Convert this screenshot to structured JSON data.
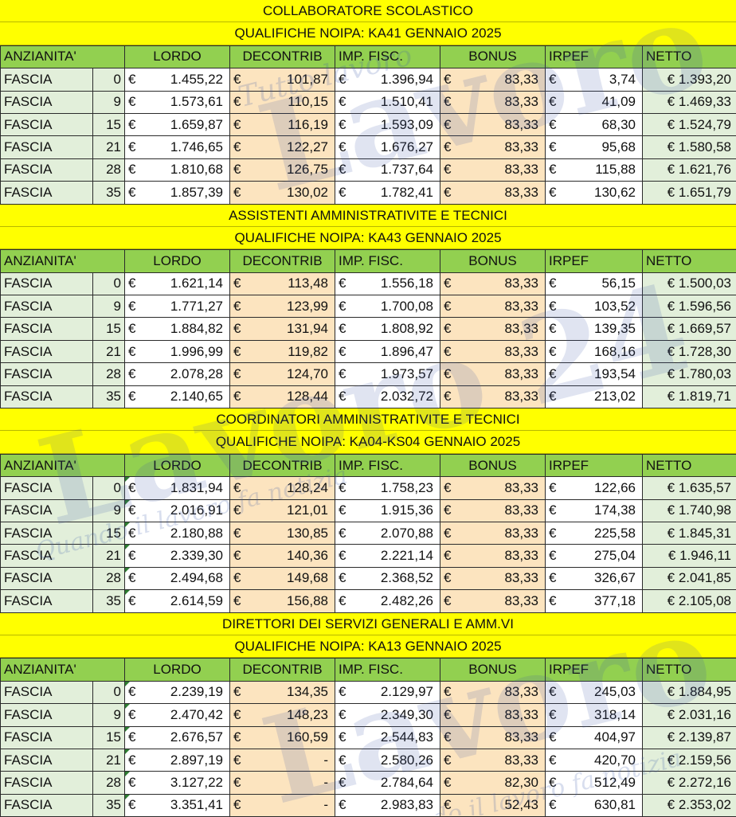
{
  "headers": [
    "ANZIANITA'",
    "LORDO",
    "DECONTRIB",
    "IMP. FISC.",
    "BONUS",
    "IRPEF",
    "NETTO"
  ],
  "currency": "€",
  "row_label": "FASCIA",
  "watermark": {
    "text": "Lavoro 24",
    "tagline": "Tutto lavoro",
    "tagline2": "Quando il lavoro fa notizia"
  },
  "sections": [
    {
      "title": "COLLABORATORE SCOLASTICO",
      "subtitle": "QUALIFICHE NOIPA: KA41 GENNAIO 2025",
      "rows": [
        {
          "years": "0",
          "lordo": "1.455,22",
          "decontrib": "101,87",
          "imp": "1.396,94",
          "bonus": "83,33",
          "irpef": "3,74",
          "netto": "€ 1.393,20"
        },
        {
          "years": "9",
          "lordo": "1.573,61",
          "decontrib": "110,15",
          "imp": "1.510,41",
          "bonus": "83,33",
          "irpef": "41,09",
          "netto": "€ 1.469,33"
        },
        {
          "years": "15",
          "lordo": "1.659,87",
          "decontrib": "116,19",
          "imp": "1.593,09",
          "bonus": "83,33",
          "irpef": "68,30",
          "netto": "€ 1.524,79"
        },
        {
          "years": "21",
          "lordo": "1.746,65",
          "decontrib": "122,27",
          "imp": "1.676,27",
          "bonus": "83,33",
          "irpef": "95,68",
          "netto": "€ 1.580,58"
        },
        {
          "years": "28",
          "lordo": "1.810,68",
          "decontrib": "126,75",
          "imp": "1.737,64",
          "bonus": "83,33",
          "irpef": "115,88",
          "netto": "€ 1.621,76"
        },
        {
          "years": "35",
          "lordo": "1.857,39",
          "decontrib": "130,02",
          "imp": "1.782,41",
          "bonus": "83,33",
          "irpef": "130,62",
          "netto": "€ 1.651,79"
        }
      ]
    },
    {
      "title": "ASSISTENTI AMMINISTRATIVITE E TECNICI",
      "subtitle": "QUALIFICHE NOIPA: KA43 GENNAIO 2025",
      "rows": [
        {
          "years": "0",
          "lordo": "1.621,14",
          "decontrib": "113,48",
          "imp": "1.556,18",
          "bonus": "83,33",
          "irpef": "56,15",
          "netto": "€ 1.500,03"
        },
        {
          "years": "9",
          "lordo": "1.771,27",
          "decontrib": "123,99",
          "imp": "1.700,08",
          "bonus": "83,33",
          "irpef": "103,52",
          "netto": "€ 1.596,56"
        },
        {
          "years": "15",
          "lordo": "1.884,82",
          "decontrib": "131,94",
          "imp": "1.808,92",
          "bonus": "83,33",
          "irpef": "139,35",
          "netto": "€ 1.669,57"
        },
        {
          "years": "21",
          "lordo": "1.996,99",
          "decontrib": "119,82",
          "imp": "1.896,47",
          "bonus": "83,33",
          "irpef": "168,16",
          "netto": "€ 1.728,30"
        },
        {
          "years": "28",
          "lordo": "2.078,28",
          "decontrib": "124,70",
          "imp": "1.973,57",
          "bonus": "83,33",
          "irpef": "193,54",
          "netto": "€ 1.780,03"
        },
        {
          "years": "35",
          "lordo": "2.140,65",
          "decontrib": "128,44",
          "imp": "2.032,72",
          "bonus": "83,33",
          "irpef": "213,02",
          "netto": "€ 1.819,71"
        }
      ]
    },
    {
      "title": "COORDINATORI AMMINISTRATIVITE E TECNICI",
      "subtitle": "QUALIFICHE NOIPA: KA04-KS04 GENNAIO 2025",
      "rows": [
        {
          "years": "0",
          "lordo": "1.831,94",
          "decontrib": "128,24",
          "imp": "1.758,23",
          "bonus": "83,33",
          "irpef": "122,66",
          "netto": "€ 1.635,57"
        },
        {
          "years": "9",
          "lordo": "2.016,91",
          "decontrib": "121,01",
          "imp": "1.915,36",
          "bonus": "83,33",
          "irpef": "174,38",
          "netto": "€ 1.740,98"
        },
        {
          "years": "15",
          "lordo": "2.180,88",
          "decontrib": "130,85",
          "imp": "2.070,88",
          "bonus": "83,33",
          "irpef": "225,58",
          "netto": "€ 1.845,31"
        },
        {
          "years": "21",
          "lordo": "2.339,30",
          "decontrib": "140,36",
          "imp": "2.221,14",
          "bonus": "83,33",
          "irpef": "275,04",
          "netto": "€ 1.946,11"
        },
        {
          "years": "28",
          "lordo": "2.494,68",
          "decontrib": "149,68",
          "imp": "2.368,52",
          "bonus": "83,33",
          "irpef": "326,67",
          "netto": "€ 2.041,85"
        },
        {
          "years": "35",
          "lordo": "2.614,59",
          "decontrib": "156,88",
          "imp": "2.482,26",
          "bonus": "83,33",
          "irpef": "377,18",
          "netto": "€ 2.105,08"
        }
      ]
    },
    {
      "title": "DIRETTORI DEI SERVIZI GENERALI E AMM.VI",
      "subtitle": "QUALIFICHE NOIPA: KA13 GENNAIO 2025",
      "rows": [
        {
          "years": "0",
          "lordo": "2.239,19",
          "decontrib": "134,35",
          "imp": "2.129,97",
          "bonus": "83,33",
          "irpef": "245,03",
          "netto": "€ 1.884,95"
        },
        {
          "years": "9",
          "lordo": "2.470,42",
          "decontrib": "148,23",
          "imp": "2.349,30",
          "bonus": "83,33",
          "irpef": "318,14",
          "netto": "€ 2.031,16"
        },
        {
          "years": "15",
          "lordo": "2.676,57",
          "decontrib": "160,59",
          "imp": "2.544,83",
          "bonus": "83,33",
          "irpef": "404,97",
          "netto": "€ 2.139,87"
        },
        {
          "years": "21",
          "lordo": "2.897,19",
          "decontrib": "-",
          "imp": "2.580,26",
          "bonus": "83,33",
          "irpef": "420,70",
          "netto": "€ 2.159,56"
        },
        {
          "years": "28",
          "lordo": "3.127,22",
          "decontrib": "-",
          "imp": "2.784,64",
          "bonus": "82,30",
          "irpef": "512,49",
          "netto": "€ 2.272,16"
        },
        {
          "years": "35",
          "lordo": "3.351,41",
          "decontrib": "-",
          "imp": "2.983,83",
          "bonus": "52,43",
          "irpef": "630,81",
          "netto": "€ 2.353,02"
        }
      ]
    }
  ]
}
